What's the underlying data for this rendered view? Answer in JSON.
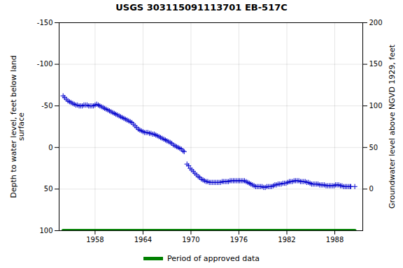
{
  "chart_data": {
    "type": "scatter",
    "title": "USGS 303115091113701 EB-517C",
    "ylabel": "Depth to water level, feet below land\nsurface",
    "y2label": "Groundwater level above NGVD 1929, feet",
    "xlim": [
      1953.5,
      1991.5
    ],
    "xticks": [
      1958,
      1964,
      1970,
      1976,
      1982,
      1988
    ],
    "ylim": [
      100,
      -150
    ],
    "yticks": [
      100,
      50,
      0,
      -50,
      -100,
      -150
    ],
    "y2lim": [
      -50,
      200
    ],
    "y2ticks": [
      0,
      50,
      100,
      150,
      200
    ],
    "grid": true,
    "legend": "bottom",
    "series": [
      {
        "color": "#0000cc",
        "marker": "plus",
        "x": [
          1954.0,
          1954.2,
          1954.4,
          1954.6,
          1954.8,
          1955.0,
          1955.2,
          1955.4,
          1955.6,
          1955.8,
          1956.0,
          1956.2,
          1956.4,
          1956.6,
          1956.8,
          1957.0,
          1957.2,
          1957.4,
          1957.6,
          1957.8,
          1958.0,
          1958.2,
          1958.4,
          1958.6,
          1958.8,
          1959.0,
          1959.2,
          1959.4,
          1959.6,
          1959.8,
          1960.0,
          1960.2,
          1960.4,
          1960.6,
          1960.8,
          1961.0,
          1961.2,
          1961.4,
          1961.6,
          1961.8,
          1962.0,
          1962.2,
          1962.4,
          1962.6,
          1962.8,
          1963.0,
          1963.2,
          1963.4,
          1963.6,
          1963.8,
          1964.0,
          1964.2,
          1964.4,
          1964.6,
          1964.8,
          1965.0,
          1965.2,
          1965.4,
          1965.6,
          1965.8,
          1966.0,
          1966.2,
          1966.4,
          1966.6,
          1966.8,
          1967.0,
          1967.2,
          1967.4,
          1967.6,
          1967.8,
          1968.0,
          1968.2,
          1968.4,
          1968.6,
          1968.8,
          1969.0,
          1969.15,
          1969.5,
          1969.7,
          1969.9,
          1970.1,
          1970.3,
          1970.5,
          1970.7,
          1970.9,
          1971.1,
          1971.3,
          1971.5,
          1971.7,
          1971.9,
          1972.1,
          1972.3,
          1972.5,
          1972.7,
          1972.9,
          1973.1,
          1973.3,
          1973.5,
          1973.7,
          1973.9,
          1974.1,
          1974.3,
          1974.5,
          1974.7,
          1974.9,
          1975.1,
          1975.3,
          1975.5,
          1975.7,
          1975.9,
          1976.1,
          1976.3,
          1976.5,
          1976.7,
          1976.9,
          1977.1,
          1977.3,
          1977.5,
          1977.7,
          1977.9,
          1978.1,
          1978.3,
          1978.5,
          1978.7,
          1978.9,
          1979.1,
          1979.3,
          1979.5,
          1979.7,
          1979.9,
          1980.1,
          1980.3,
          1980.5,
          1980.7,
          1980.9,
          1981.1,
          1981.3,
          1981.5,
          1981.7,
          1981.9,
          1982.1,
          1982.3,
          1982.5,
          1982.7,
          1982.9,
          1983.1,
          1983.3,
          1983.5,
          1983.7,
          1983.9,
          1984.1,
          1984.3,
          1984.5,
          1984.7,
          1984.9,
          1985.1,
          1985.3,
          1985.5,
          1985.7,
          1985.9,
          1986.1,
          1986.3,
          1986.5,
          1986.7,
          1986.9,
          1987.1,
          1987.3,
          1987.5,
          1987.7,
          1987.9,
          1988.1,
          1988.3,
          1988.5,
          1988.7,
          1988.9,
          1989.1,
          1989.3,
          1989.5,
          1989.7,
          1989.9,
          1990.0,
          1990.5
        ],
        "values": [
          -62,
          -60,
          -58,
          -56,
          -55,
          -54,
          -53,
          -52,
          -51,
          -51,
          -50,
          -50,
          -50,
          -51,
          -51,
          -51,
          -50,
          -50,
          -50,
          -50,
          -51,
          -52,
          -51,
          -50,
          -49,
          -48,
          -47,
          -46,
          -45,
          -44,
          -43,
          -42,
          -41,
          -40,
          -39,
          -38,
          -37,
          -36,
          -35,
          -34,
          -33,
          -32,
          -31,
          -30,
          -28,
          -26,
          -24,
          -22,
          -21,
          -20,
          -19,
          -18,
          -18,
          -18,
          -17,
          -17,
          -16,
          -16,
          -15,
          -14,
          -13,
          -12,
          -11,
          -10,
          -9,
          -8,
          -7,
          -6,
          -5,
          -3,
          -2,
          -1,
          0,
          1,
          2,
          4,
          5,
          20,
          22,
          25,
          27,
          29,
          31,
          33,
          35,
          36,
          38,
          39,
          40,
          41,
          41,
          42,
          42,
          42,
          42,
          42,
          42,
          42,
          42,
          41,
          41,
          41,
          41,
          41,
          40,
          40,
          40,
          40,
          40,
          40,
          40,
          40,
          40,
          40,
          41,
          42,
          43,
          44,
          45,
          46,
          47,
          47,
          47,
          47,
          47,
          48,
          48,
          47,
          47,
          47,
          47,
          46,
          45,
          45,
          44,
          44,
          44,
          43,
          43,
          43,
          42,
          41,
          41,
          41,
          40,
          40,
          40,
          40,
          41,
          41,
          41,
          41,
          42,
          42,
          43,
          44,
          44,
          44,
          44,
          44,
          45,
          45,
          45,
          45,
          46,
          46,
          46,
          46,
          46,
          46,
          45,
          45,
          45,
          46,
          46,
          47,
          47,
          47,
          47,
          47,
          47,
          47
        ]
      },
      {
        "name": "Period of approved data",
        "type": "line",
        "color": "#008000",
        "x": [
          1954.0,
          1990.5
        ],
        "values": [
          100,
          100
        ]
      }
    ]
  }
}
